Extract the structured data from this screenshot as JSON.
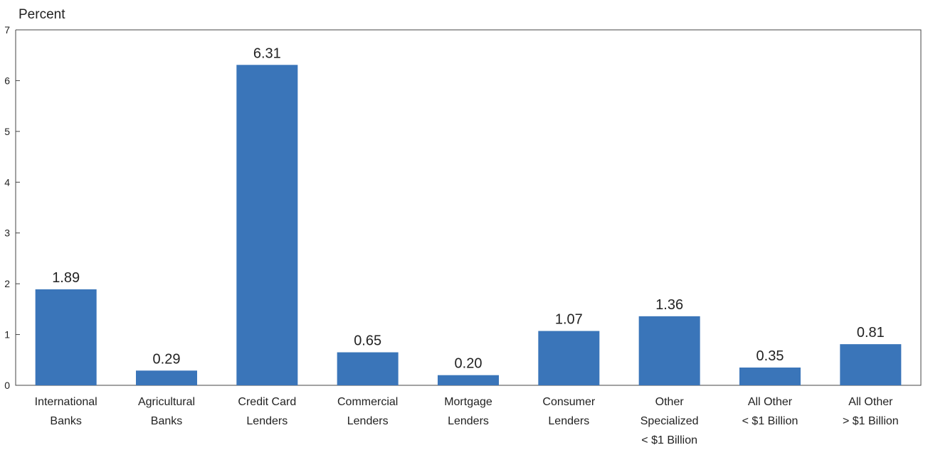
{
  "chart_data": {
    "type": "bar",
    "ylabel": "Percent",
    "xlabel": "",
    "ylim": [
      0,
      7
    ],
    "yticks": [
      "0",
      "1",
      "2",
      "3",
      "4",
      "5",
      "6",
      "7"
    ],
    "grid": false,
    "bar_color": "#3a75b9",
    "categories": [
      [
        "International",
        "Banks"
      ],
      [
        "Agricultural",
        "Banks"
      ],
      [
        "Credit Card",
        "Lenders"
      ],
      [
        "Commercial",
        "Lenders"
      ],
      [
        "Mortgage",
        "Lenders"
      ],
      [
        "Consumer",
        "Lenders"
      ],
      [
        "Other",
        "Specialized",
        "< $1 Billion"
      ],
      [
        "All Other",
        "< $1 Billion"
      ],
      [
        "All Other",
        "> $1 Billion"
      ]
    ],
    "values": [
      1.89,
      0.29,
      6.31,
      0.65,
      0.2,
      1.07,
      1.36,
      0.35,
      0.81
    ],
    "data_labels": [
      "1.89",
      "0.29",
      "6.31",
      "0.65",
      "0.20",
      "1.07",
      "1.36",
      "0.35",
      "0.81"
    ]
  }
}
